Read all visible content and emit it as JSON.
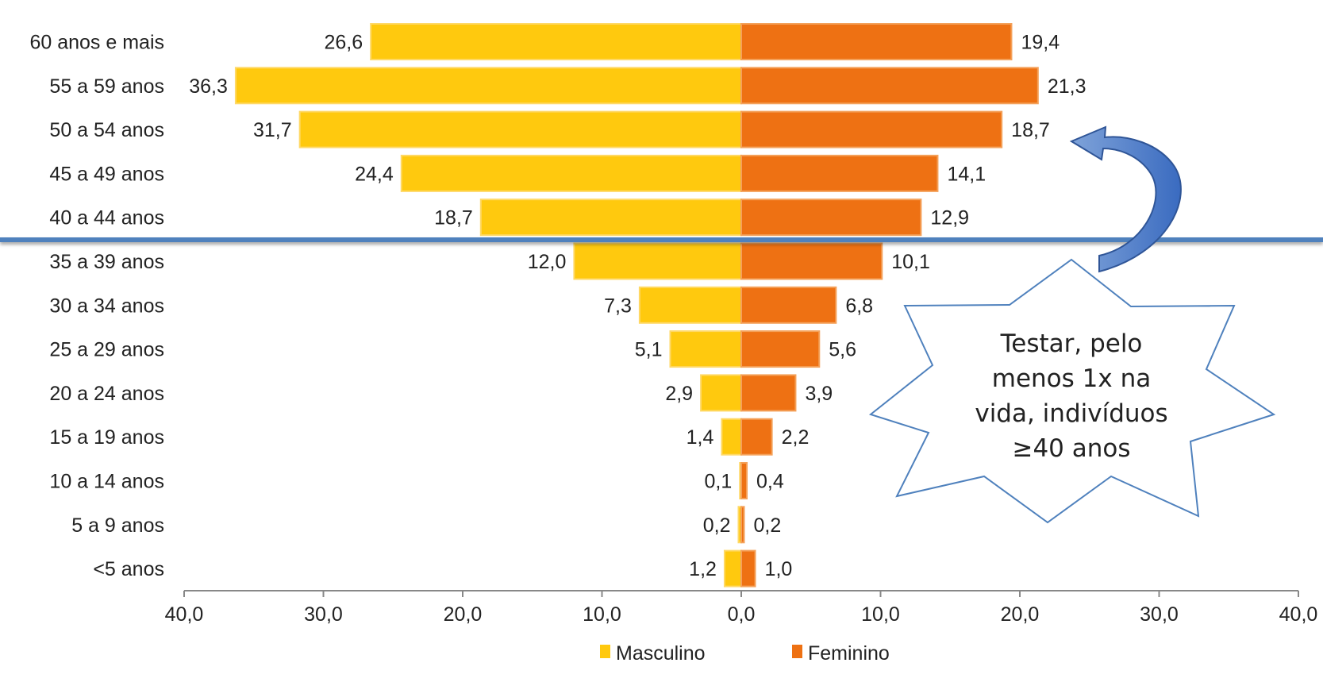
{
  "chart_data": {
    "type": "bar",
    "orientation": "horizontal-diverging",
    "categories": [
      "60 anos e mais",
      "55 a 59 anos",
      "50 a 54 anos",
      "45 a 49 anos",
      "40 a 44 anos",
      "35 a 39 anos",
      "30 a 34 anos",
      "25 a 29 anos",
      "20 a 24 anos",
      "15 a 19 anos",
      "10 a 14 anos",
      "5 a 9 anos",
      "<5 anos"
    ],
    "series": [
      {
        "name": "Masculino",
        "color": "#FFC90E",
        "values": [
          26.6,
          36.3,
          31.7,
          24.4,
          18.7,
          12.0,
          7.3,
          5.1,
          2.9,
          1.4,
          0.1,
          0.2,
          1.2
        ],
        "labels": [
          "26,6",
          "36,3",
          "31,7",
          "24,4",
          "18,7",
          "12,0",
          "7,3",
          "5,1",
          "2,9",
          "1,4",
          "0,1",
          "0,2",
          "1,2"
        ]
      },
      {
        "name": "Feminino",
        "color": "#EE7113",
        "values": [
          19.4,
          21.3,
          18.7,
          14.1,
          12.9,
          10.1,
          6.8,
          5.6,
          3.9,
          2.2,
          0.4,
          0.2,
          1.0
        ],
        "labels": [
          "19,4",
          "21,3",
          "18,7",
          "14,1",
          "12,9",
          "10,1",
          "6,8",
          "5,6",
          "3,9",
          "2,2",
          "0,4",
          "0,2",
          "1,0"
        ]
      }
    ],
    "xlim": [
      -40,
      40
    ],
    "x_ticks": [
      -40,
      -30,
      -20,
      -10,
      0,
      10,
      20,
      30,
      40
    ],
    "x_tick_labels": [
      "40,0",
      "30,0",
      "20,0",
      "10,0",
      "0,0",
      "10,0",
      "20,0",
      "30,0",
      "40,0"
    ],
    "grid": false,
    "legend_position": "bottom",
    "title": "",
    "xlabel": "",
    "ylabel": ""
  },
  "annotations": {
    "divider_color": "#4F81BD",
    "divider_after_category": "40 a 44 anos",
    "arrow_color": "#4472C4",
    "callout_lines": [
      "Testar, pelo",
      "menos 1x na",
      "vida, indivíduos",
      "≥40 anos"
    ],
    "callout_border_color": "#4F81BD"
  }
}
